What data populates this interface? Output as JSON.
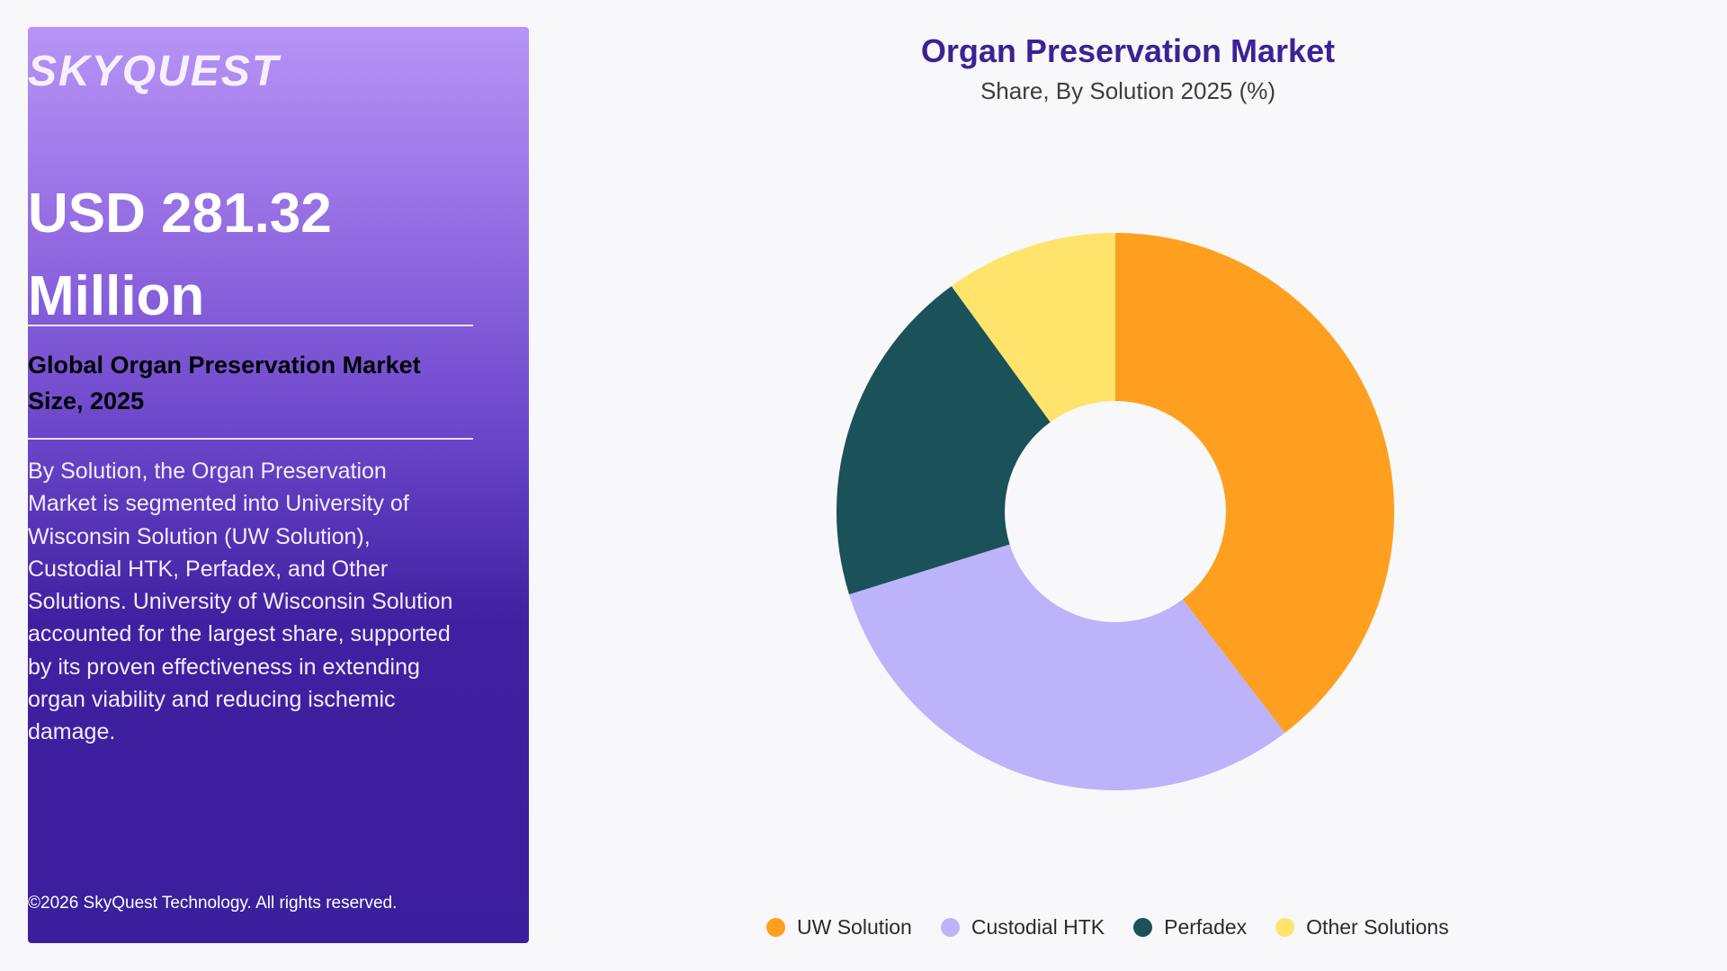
{
  "panel": {
    "logo": "SKYQUEST",
    "value": "USD 281.32 Million",
    "subtitle": "Global Organ Preservation Market Size, 2025",
    "description": "By Solution, the Organ Preservation Market is segmented into University of Wisconsin Solution (UW Solution), Custodial HTK, Perfadex, and Other Solutions. University of Wisconsin Solution accounted for the largest share, supported by its proven effectiveness in extending organ viability and reducing ischemic damage.",
    "copyright": "©2026 SkyQuest Technology. All rights reserved."
  },
  "chart_data": {
    "type": "pie",
    "title": "Organ Preservation Market",
    "subtitle": "Share, By Solution 2025 (%)",
    "categories": [
      "UW Solution",
      "Custodial HTK",
      "Perfadex",
      "Other Solutions"
    ],
    "values": [
      39.6,
      30.6,
      19.8,
      10.0
    ],
    "colors": [
      "#ff9f1f",
      "#bcb3fb",
      "#1b5158",
      "#ffe36b"
    ],
    "donut": true,
    "legend_position": "bottom"
  }
}
